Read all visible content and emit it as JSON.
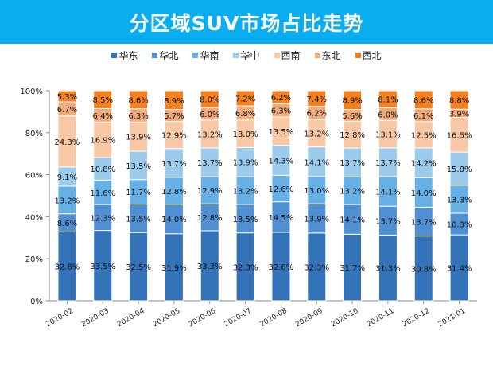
{
  "chart_data": {
    "type": "bar",
    "stacked": true,
    "title": "分区域SUV市场占比走势",
    "categories": [
      "2020-02",
      "2020-03",
      "2020-04",
      "2020-05",
      "2020-06",
      "2020-07",
      "2020-08",
      "2020-09",
      "2020-10",
      "2020-11",
      "2020-12",
      "2021-01"
    ],
    "series": [
      {
        "name": "华东",
        "color": "#3473b8",
        "values": [
          32.8,
          33.5,
          32.5,
          31.9,
          33.3,
          32.3,
          32.6,
          32.3,
          31.7,
          31.3,
          30.8,
          31.4
        ]
      },
      {
        "name": "华北",
        "color": "#4f8fd2",
        "values": [
          8.6,
          12.3,
          13.5,
          14.0,
          12.8,
          13.5,
          14.5,
          13.9,
          14.1,
          13.7,
          13.7,
          10.3
        ]
      },
      {
        "name": "华南",
        "color": "#66b0e6",
        "values": [
          13.2,
          11.6,
          11.7,
          12.8,
          12.9,
          13.2,
          12.6,
          13.0,
          13.2,
          14.1,
          14.0,
          13.3
        ]
      },
      {
        "name": "华中",
        "color": "#9ccbec",
        "values": [
          9.1,
          10.8,
          13.5,
          13.7,
          13.7,
          13.9,
          14.3,
          14.1,
          13.7,
          13.7,
          14.2,
          15.8
        ]
      },
      {
        "name": "西南",
        "color": "#f7c7a6",
        "values": [
          24.3,
          16.9,
          13.9,
          12.9,
          13.2,
          13.0,
          13.5,
          13.2,
          12.8,
          13.1,
          12.5,
          16.5
        ]
      },
      {
        "name": "东北",
        "color": "#f1aa7b",
        "values": [
          6.7,
          6.4,
          6.3,
          5.7,
          6.0,
          6.8,
          6.3,
          6.2,
          5.6,
          6.0,
          6.1,
          3.9
        ]
      },
      {
        "name": "西北",
        "color": "#f5801f",
        "values": [
          5.3,
          8.5,
          8.6,
          8.9,
          8.0,
          7.2,
          6.2,
          7.4,
          8.9,
          8.1,
          8.6,
          8.8
        ]
      }
    ],
    "ylim": [
      0,
      100
    ],
    "yticks": [
      "0%",
      "20%",
      "40%",
      "60%",
      "80%",
      "100%"
    ],
    "legend": "top",
    "grid": false
  }
}
